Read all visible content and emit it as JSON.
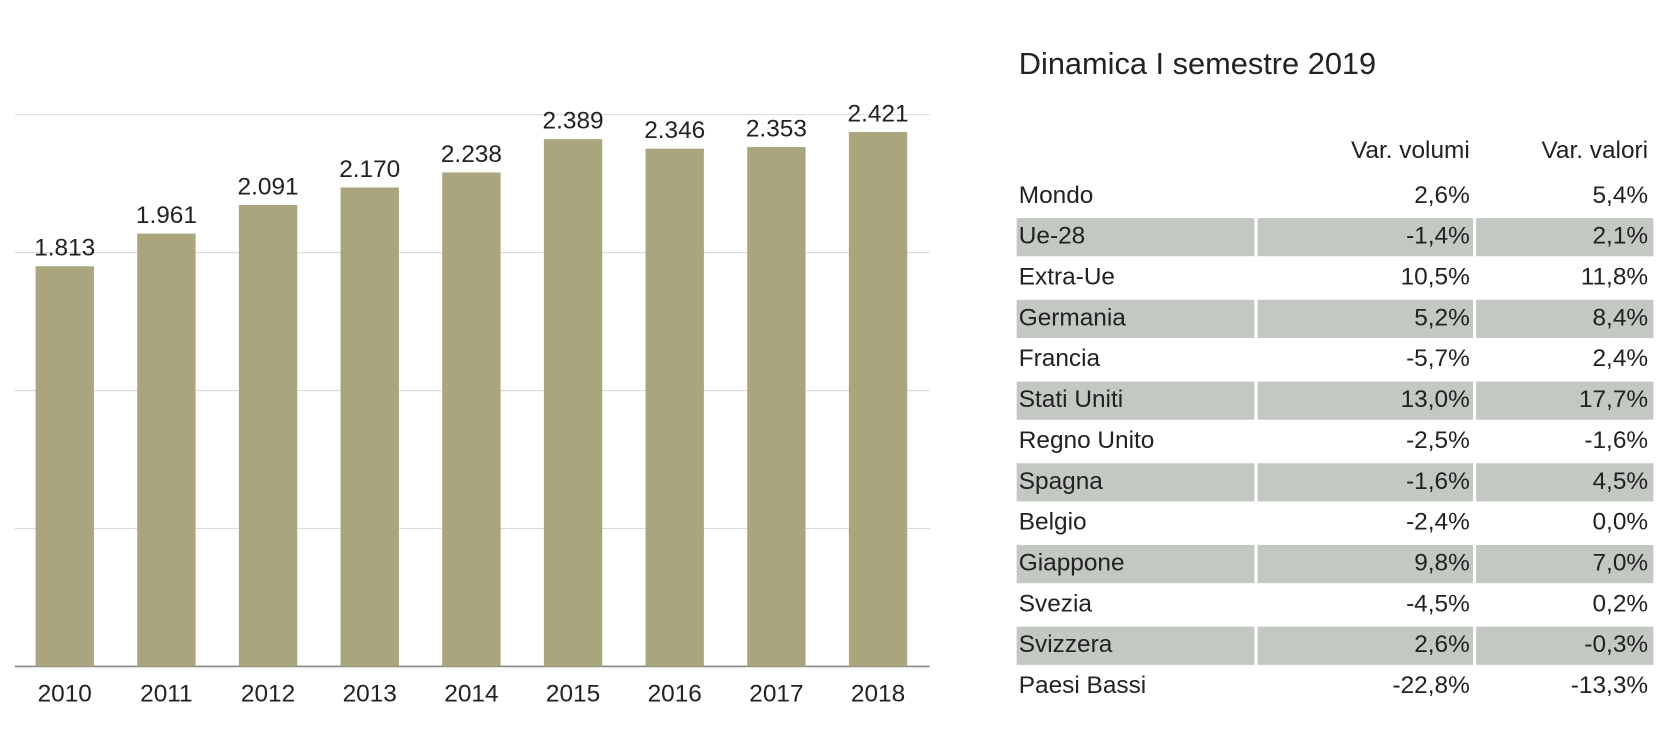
{
  "chart_data": {
    "type": "bar",
    "categories": [
      "2010",
      "2011",
      "2012",
      "2013",
      "2014",
      "2015",
      "2016",
      "2017",
      "2018"
    ],
    "values": [
      1813,
      1961,
      2091,
      2170,
      2238,
      2389,
      2346,
      2353,
      2421
    ],
    "value_labels": [
      "1.813",
      "1.961",
      "2.091",
      "2.170",
      "2.238",
      "2.389",
      "2.346",
      "2.353",
      "2.421"
    ],
    "color": "#a9a67e",
    "ylim": [
      0,
      2500
    ],
    "yticks": [
      0,
      625,
      1250,
      1875,
      2500
    ],
    "grid": true
  },
  "table": {
    "title": "Dinamica I semestre 2019",
    "columns": [
      "Var. volumi",
      "Var. valori"
    ],
    "rows": [
      [
        "Mondo",
        "2,6%",
        "5,4%"
      ],
      [
        "Ue-28",
        "-1,4%",
        "2,1%"
      ],
      [
        "Extra-Ue",
        "10,5%",
        "11,8%"
      ],
      [
        "Germania",
        "5,2%",
        "8,4%"
      ],
      [
        "Francia",
        "-5,7%",
        "2,4%"
      ],
      [
        "Stati Uniti",
        "13,0%",
        "17,7%"
      ],
      [
        "Regno Unito",
        "-2,5%",
        "-1,6%"
      ],
      [
        "Spagna",
        "-1,6%",
        "4,5%"
      ],
      [
        "Belgio",
        "-2,4%",
        "0,0%"
      ],
      [
        "Giappone",
        "9,8%",
        "7,0%"
      ],
      [
        "Svezia",
        "-4,5%",
        "0,2%"
      ],
      [
        "Svizzera",
        "2,6%",
        "-0,3%"
      ],
      [
        "Paesi Bassi",
        "-22,8%",
        "-13,3%"
      ]
    ]
  }
}
